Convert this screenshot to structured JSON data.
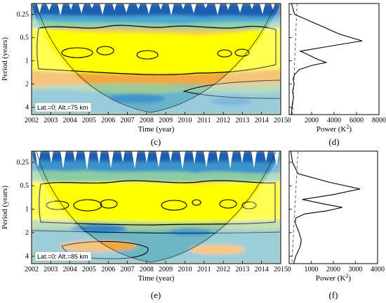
{
  "chart_data": [
    {
      "type": "heatmap",
      "title": "",
      "panel_label": "(c)",
      "xlabel": "Time (year)",
      "ylabel": "Period (years)",
      "x_ticks": [
        "2002",
        "2003",
        "2004",
        "2005",
        "2006",
        "2007",
        "2008",
        "2009",
        "2010",
        "2011",
        "2012",
        "2013",
        "2014",
        "2015"
      ],
      "y_ticks": [
        "0.25",
        "0.5",
        "1",
        "2",
        "4"
      ],
      "annotation": "Lat.=0; Alt.=75 km",
      "colors": {
        "high": "#ffff00",
        "mid": "#f2c24e",
        "low": "#3fa6d8",
        "min": "#1565c0"
      }
    },
    {
      "type": "line",
      "title": "",
      "panel_label": "(d)",
      "xlabel": "Power (K",
      "xlabel_sup": "2",
      "xlabel_end": ")",
      "x_ticks": [
        "0",
        "2000",
        "4000",
        "6000",
        "8000"
      ],
      "xlim": [
        0,
        8000
      ],
      "y_scale": "log2",
      "ylim": [
        0.18,
        5
      ],
      "series": [
        {
          "style": "solid",
          "period": [
            0.18,
            0.25,
            0.35,
            0.45,
            0.55,
            0.65,
            0.75,
            0.85,
            0.95,
            1.05,
            1.15,
            1.3,
            1.5,
            1.7,
            2.0,
            2.5,
            3.0,
            3.5,
            4.0,
            5.0
          ],
          "power": [
            200,
            500,
            2800,
            4500,
            6500,
            3500,
            1000,
            1800,
            2500,
            3300,
            2000,
            900,
            500,
            350,
            450,
            300,
            400,
            300,
            250,
            200
          ]
        },
        {
          "style": "dashed",
          "period": [
            0.18,
            5.0
          ],
          "power": [
            700,
            300
          ]
        }
      ]
    },
    {
      "type": "heatmap",
      "title": "",
      "panel_label": "(e)",
      "xlabel": "Time (year)",
      "ylabel": "Period (years)",
      "x_ticks": [
        "2002",
        "2003",
        "2004",
        "2005",
        "2006",
        "2007",
        "2008",
        "2009",
        "2010",
        "2011",
        "2012",
        "2013",
        "2014",
        "2015"
      ],
      "y_ticks": [
        "0.25",
        "0.5",
        "1",
        "2",
        "4"
      ],
      "annotation": "Lat.=0; Alt.=85 km",
      "colors": {
        "high": "#ffff00",
        "mid": "#f2c24e",
        "low": "#3fa6d8",
        "min": "#1565c0"
      }
    },
    {
      "type": "line",
      "title": "",
      "panel_label": "(f)",
      "xlabel": "Power (K",
      "xlabel_sup": "2",
      "xlabel_end": ")",
      "x_ticks": [
        "0",
        "1000",
        "2000",
        "3000",
        "4000"
      ],
      "xlim": [
        0,
        4000
      ],
      "y_scale": "log2",
      "ylim": [
        0.18,
        5
      ],
      "series": [
        {
          "style": "solid",
          "period": [
            0.18,
            0.25,
            0.35,
            0.45,
            0.55,
            0.65,
            0.75,
            0.85,
            0.95,
            1.05,
            1.15,
            1.3,
            1.5,
            1.7,
            2.0,
            2.5,
            3.0,
            3.5,
            4.0,
            5.0
          ],
          "power": [
            80,
            150,
            400,
            1800,
            3200,
            2000,
            600,
            1500,
            2400,
            1700,
            700,
            300,
            280,
            350,
            450,
            550,
            500,
            400,
            300,
            200
          ]
        },
        {
          "style": "dashed",
          "period": [
            0.18,
            5.0
          ],
          "power": [
            400,
            120
          ]
        }
      ]
    }
  ]
}
